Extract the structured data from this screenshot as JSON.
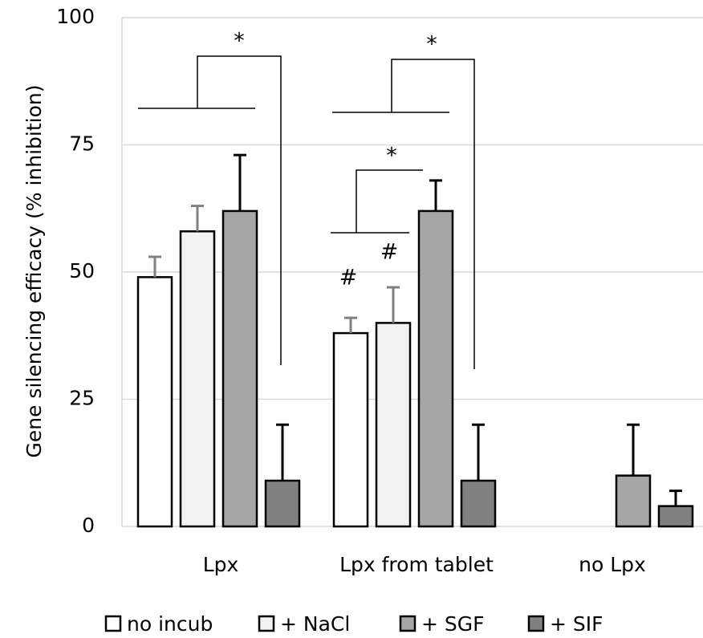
{
  "chart_data": {
    "type": "bar",
    "ylabel": "Gene silencing efficacy (% inhibition)",
    "ylim": [
      0,
      100
    ],
    "yticks": [
      0,
      25,
      50,
      75,
      100
    ],
    "grid": true,
    "legend_position": "bottom",
    "categories": [
      "Lpx",
      "Lpx from tablet",
      "no Lpx"
    ],
    "series": [
      {
        "name": "no incub",
        "color": "#ffffff",
        "values": [
          49,
          38,
          null
        ],
        "errors": [
          4,
          3,
          null
        ]
      },
      {
        "name": "+ NaCl",
        "color": "#f2f2f2",
        "values": [
          58,
          40,
          null
        ],
        "errors": [
          5,
          7,
          null
        ]
      },
      {
        "name": "+ SGF",
        "color": "#a6a6a6",
        "values": [
          62,
          62,
          10
        ],
        "errors": [
          11,
          6,
          10
        ]
      },
      {
        "name": "+ SIF",
        "color": "#808080",
        "values": [
          9,
          9,
          4
        ],
        "errors": [
          11,
          11,
          3
        ]
      }
    ],
    "annotations": [
      {
        "text": "*",
        "type": "significance",
        "between": "Lpx: no incub, + NaCl, + SGF vs + SIF"
      },
      {
        "text": "*",
        "type": "significance",
        "between": "Lpx from tablet: no incub, + NaCl, + SGF vs + SIF"
      },
      {
        "text": "*",
        "type": "significance",
        "between": "Lpx from tablet: no incub, + NaCl vs + SGF"
      },
      {
        "text": "#",
        "type": "marker",
        "category": "Lpx from tablet",
        "series": "no incub"
      },
      {
        "text": "#",
        "type": "marker",
        "category": "Lpx from tablet",
        "series": "+ NaCl"
      }
    ]
  }
}
